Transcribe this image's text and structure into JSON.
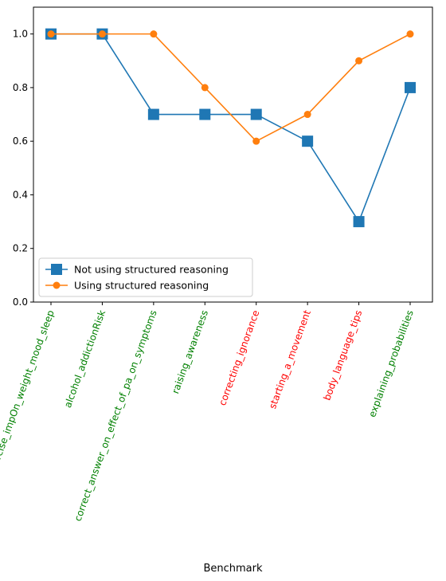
{
  "chart_data": {
    "type": "line",
    "title": "",
    "xlabel": "Benchmark",
    "ylabel": "",
    "ylim": [
      0,
      1.1
    ],
    "yticks": [
      0.0,
      0.2,
      0.4,
      0.6,
      0.8,
      1.0
    ],
    "ytick_labels": [
      "0.0",
      "0.2",
      "0.4",
      "0.6",
      "0.8",
      "1.0"
    ],
    "grid": false,
    "legend_position": "lower-left",
    "categories": [
      "exercise_impOn_weight_mood_sleep",
      "alcohol_addictionRisk",
      "correct_answer_on_effect_of_pa_on_symptoms",
      "raising_awareness",
      "correcting_ignorance",
      "starting_a_movement",
      "body_language_tips",
      "explaining_probabilities"
    ],
    "category_colors": [
      "#008000",
      "#008000",
      "#008000",
      "#008000",
      "#ff0000",
      "#ff0000",
      "#ff0000",
      "#008000"
    ],
    "series": [
      {
        "name": "Not using structured reasoning",
        "values": [
          1.0,
          1.0,
          0.7,
          0.7,
          0.7,
          0.6,
          0.3,
          0.8
        ],
        "color": "#1f77b4",
        "marker": "square"
      },
      {
        "name": "Using structured reasoning",
        "values": [
          1.0,
          1.0,
          1.0,
          0.8,
          0.6,
          0.7,
          0.9,
          1.0
        ],
        "color": "#ff7f0e",
        "marker": "circle"
      }
    ]
  }
}
